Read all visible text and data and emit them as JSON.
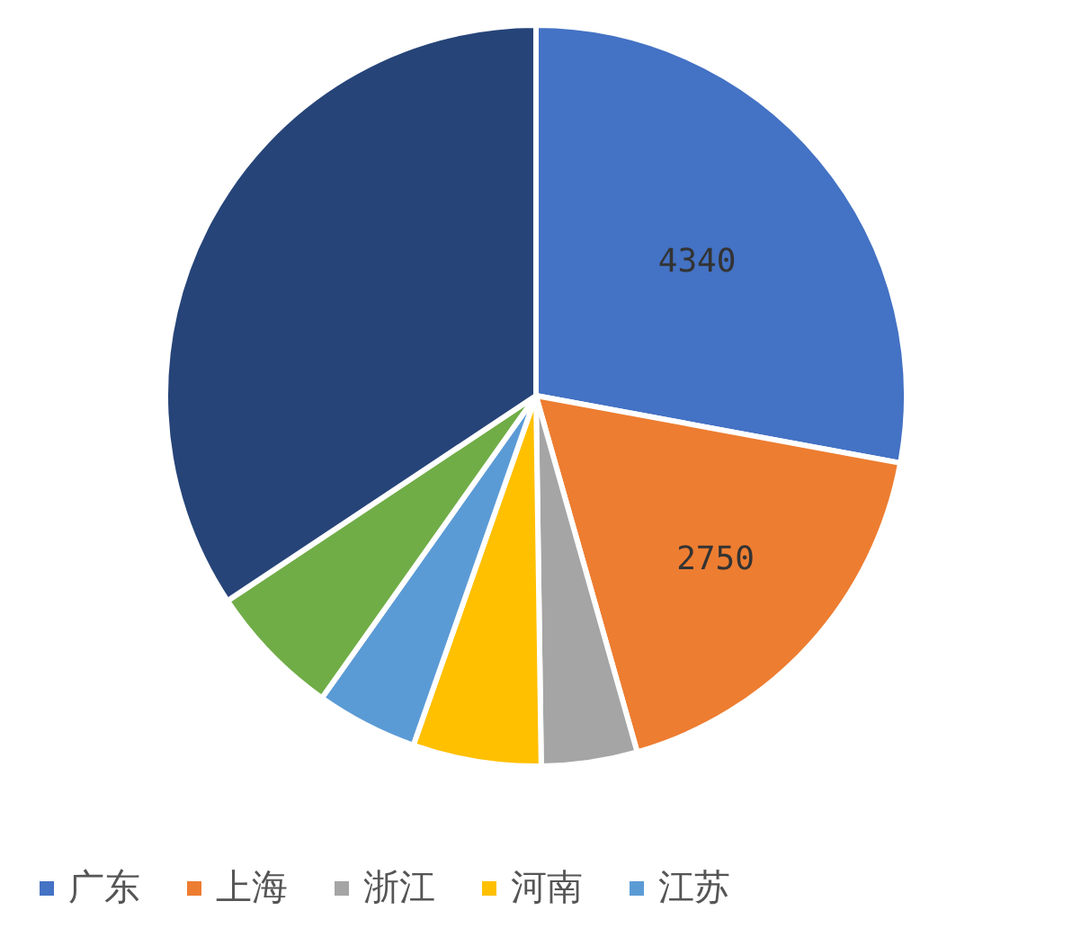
{
  "chart_data": {
    "type": "pie",
    "categories": [
      "广东",
      "上海",
      "浙江",
      "河南",
      "江苏",
      null,
      null
    ],
    "values": [
      4340,
      2750,
      650,
      870,
      690,
      910,
      5340
    ],
    "value_labels": [
      "4340",
      "2750",
      null,
      null,
      null,
      null,
      null
    ],
    "colors": [
      "#4472c4",
      "#ed7d31",
      "#a5a5a5",
      "#ffc000",
      "#5b9bd5",
      "#70ad47",
      "#264478"
    ],
    "legend": "bottom"
  }
}
